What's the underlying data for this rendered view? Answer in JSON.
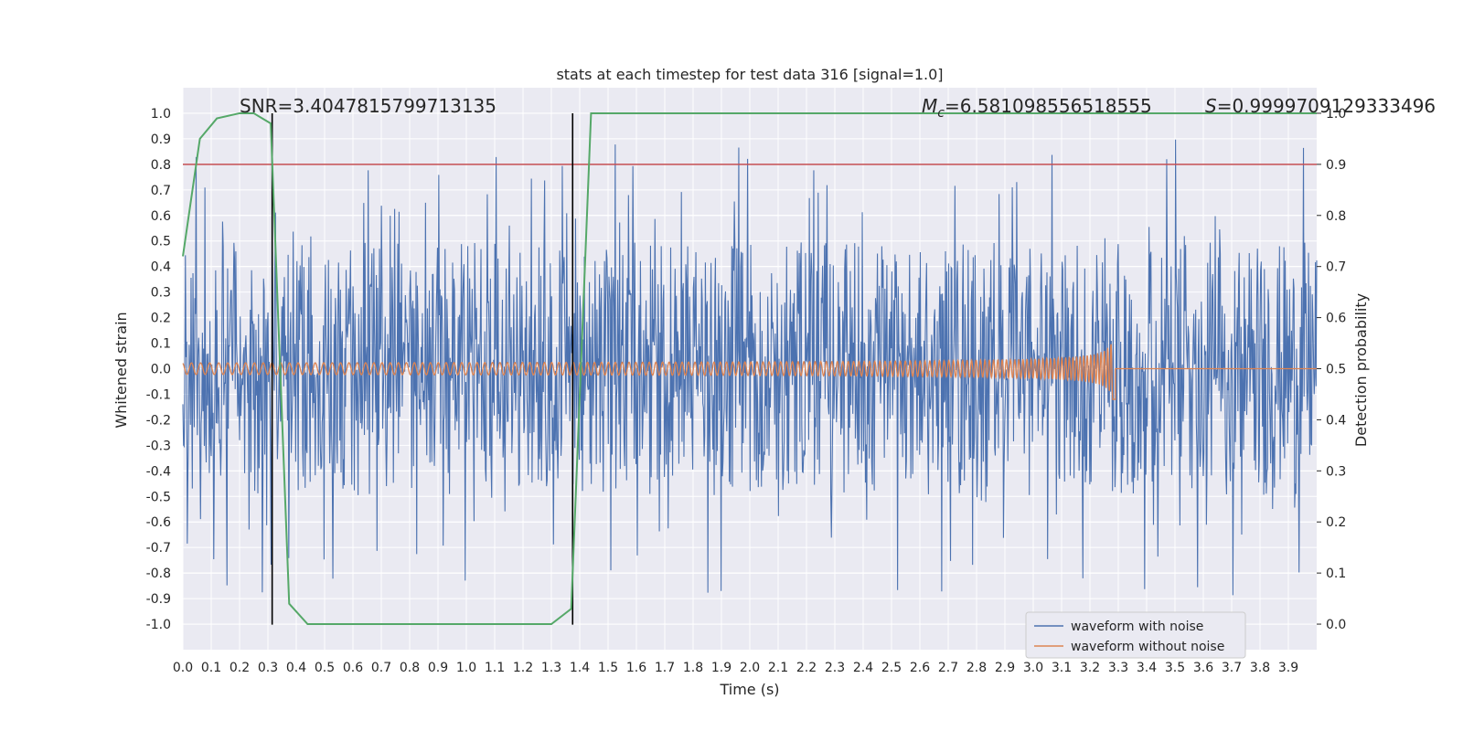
{
  "chart_data": {
    "type": "line",
    "title": "stats at each timestep for test data 316 [signal=1.0]",
    "xlabel": "Time (s)",
    "ylabel": "Whitened strain",
    "ylabel_right": "Detection probability",
    "xlim": [
      0.0,
      4.0
    ],
    "ylim": [
      -1.1,
      1.1
    ],
    "ylim_right": [
      -0.05,
      1.05
    ],
    "x_ticks": [
      "0.0",
      "0.1",
      "0.2",
      "0.3",
      "0.4",
      "0.5",
      "0.6",
      "0.7",
      "0.8",
      "0.9",
      "1.0",
      "1.1",
      "1.2",
      "1.3",
      "1.4",
      "1.5",
      "1.6",
      "1.7",
      "1.8",
      "1.9",
      "2.0",
      "2.1",
      "2.2",
      "2.3",
      "2.4",
      "2.5",
      "2.6",
      "2.7",
      "2.8",
      "2.9",
      "3.0",
      "3.1",
      "3.2",
      "3.3",
      "3.4",
      "3.5",
      "3.6",
      "3.7",
      "3.8",
      "3.9"
    ],
    "y_ticks": [
      "1.0",
      "0.9",
      "0.8",
      "0.7",
      "0.6",
      "0.5",
      "0.4",
      "0.3",
      "0.2",
      "0.1",
      "0.0",
      "-0.1",
      "-0.2",
      "-0.3",
      "-0.4",
      "-0.5",
      "-0.6",
      "-0.7",
      "-0.8",
      "-0.9",
      "-1.0"
    ],
    "y_ticks_right": [
      "1.0",
      "0.9",
      "0.8",
      "0.7",
      "0.6",
      "0.5",
      "0.4",
      "0.3",
      "0.2",
      "0.1",
      "0.0"
    ],
    "grid": true,
    "annotations": {
      "snr": "SNR=3.4047815799713135",
      "mc_symbol": "M",
      "mc_sub": "c",
      "mc_value": "=6.581098556518555",
      "s_symbol": "S",
      "s_value": "=0.9999709129333496"
    },
    "threshold": {
      "axis": "right",
      "value": 0.9,
      "color": "#c44e52"
    },
    "vertical_lines": [
      0.315,
      1.375
    ],
    "noise_envelope": {
      "x": [
        0.0,
        4.0
      ],
      "approx_amplitude": [
        -0.9,
        0.9
      ]
    },
    "series": [
      {
        "name": "waveform with noise",
        "color": "#4c72b0",
        "axis": "left"
      },
      {
        "name": "waveform without noise",
        "color": "#dd8452",
        "axis": "left",
        "chirp_end_time": 3.29,
        "amplitude_start": 0.015,
        "amplitude_peak": 0.12
      },
      {
        "name": "detection probability",
        "color": "#55a868",
        "axis": "right",
        "x": [
          0.0,
          0.06,
          0.12,
          0.2,
          0.25,
          0.31,
          0.375,
          0.44,
          1.0,
          1.3,
          1.37,
          1.44,
          4.0
        ],
        "values": [
          0.72,
          0.95,
          0.99,
          1.0,
          1.0,
          0.98,
          0.04,
          0.0,
          0.0,
          0.0,
          0.03,
          1.0,
          1.0
        ]
      }
    ],
    "legend": {
      "placement": "lower-right",
      "entries": [
        "waveform with noise",
        "waveform without noise"
      ]
    }
  }
}
